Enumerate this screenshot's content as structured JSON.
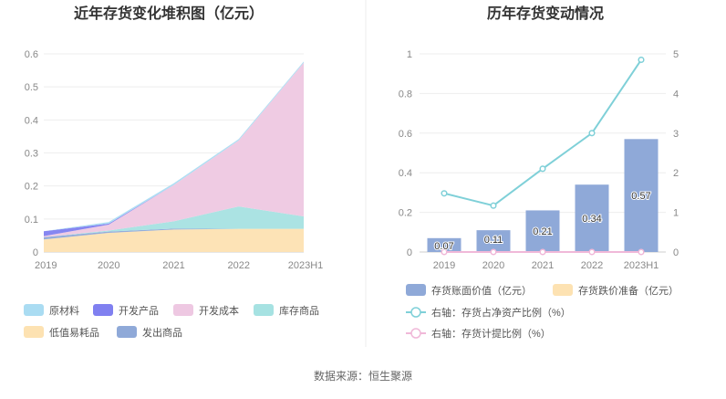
{
  "source": "数据来源：恒生聚源",
  "charts": [
    {
      "title": "近年存货变化堆积图（亿元）",
      "type": "area",
      "categories": [
        "2019",
        "2020",
        "2021",
        "2022",
        "2023H1"
      ],
      "ylim": [
        0,
        0.6
      ],
      "yticks": [
        "0",
        "0.1",
        "0.2",
        "0.3",
        "0.4",
        "0.5",
        "0.6"
      ],
      "grid": true,
      "legend_position": "bottom",
      "series": [
        {
          "name": "原材料",
          "color": "#aadcf2",
          "values": [
            0.0,
            0.005,
            0.005,
            0.004,
            0.004
          ]
        },
        {
          "name": "开发产品",
          "color": "#8080f0",
          "values": [
            0.015,
            0.003,
            0.0,
            0.0,
            0.0
          ]
        },
        {
          "name": "开发成本",
          "color": "#eec8e2",
          "values": [
            0.003,
            0.018,
            0.11,
            0.2,
            0.465
          ]
        },
        {
          "name": "库存商品",
          "color": "#a6e2e2",
          "values": [
            0.0,
            0.003,
            0.022,
            0.068,
            0.038
          ]
        },
        {
          "name": "低值易耗品",
          "color": "#fde2b2",
          "values": [
            0.038,
            0.058,
            0.068,
            0.07,
            0.07
          ]
        },
        {
          "name": "发出商品",
          "color": "#8fa9d8",
          "values": [
            0.007,
            0.004,
            0.003,
            0.0,
            0.0
          ]
        }
      ],
      "legend_order": [
        0,
        1,
        2,
        3,
        4,
        5
      ]
    },
    {
      "title": "历年存货变动情况",
      "type": "bar+line",
      "categories": [
        "2019",
        "2020",
        "2021",
        "2022",
        "2023H1"
      ],
      "ylim_left": [
        0,
        1
      ],
      "yticks_left": [
        "0",
        "0.2",
        "0.4",
        "0.6",
        "0.8",
        "1"
      ],
      "ylim_right": [
        0,
        5
      ],
      "yticks_right": [
        "0",
        "1",
        "2",
        "3",
        "4",
        "5"
      ],
      "grid": true,
      "legend_position": "bottom",
      "bars": [
        {
          "name": "存货账面价值（亿元）",
          "color": "#8fa9d8",
          "values": [
            0.07,
            0.11,
            0.21,
            0.34,
            0.57
          ],
          "labels": [
            "0.07",
            "0.11",
            "0.21",
            "0.34",
            "0.57"
          ]
        },
        {
          "name": "存货跌价准备（亿元）",
          "color": "#fde2b2",
          "values": [
            0,
            0,
            0,
            0,
            0
          ]
        }
      ],
      "lines": [
        {
          "name": "右轴：存货占净资产比例（%）",
          "color": "#7fd0d8",
          "values": [
            1.48,
            1.17,
            2.1,
            3.0,
            4.85
          ]
        },
        {
          "name": "右轴：存货计提比例（%）",
          "color": "#f0b8d8",
          "values": [
            0,
            0,
            0,
            0,
            0
          ]
        }
      ]
    }
  ]
}
